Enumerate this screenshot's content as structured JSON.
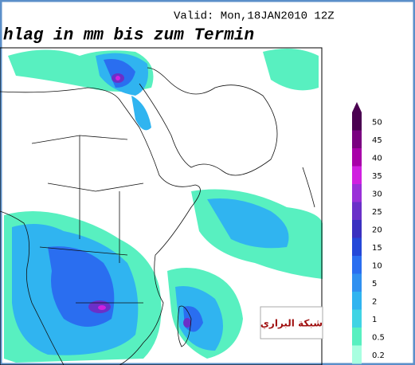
{
  "header": {
    "valid": "Valid: Mon,18JAN2010 12Z",
    "title": "hlag in mm bis zum Termin"
  },
  "legend": {
    "items": [
      {
        "label": "50",
        "color": "#4a0050"
      },
      {
        "label": "45",
        "color": "#7a0080"
      },
      {
        "label": "40",
        "color": "#a800a8"
      },
      {
        "label": "35",
        "color": "#d020e0"
      },
      {
        "label": "30",
        "color": "#9a30d8"
      },
      {
        "label": "25",
        "color": "#6a30c8"
      },
      {
        "label": "20",
        "color": "#3a30c0"
      },
      {
        "label": "15",
        "color": "#2448d8"
      },
      {
        "label": "10",
        "color": "#2a6ef0"
      },
      {
        "label": "5",
        "color": "#3090f0"
      },
      {
        "label": "2",
        "color": "#30b4f0"
      },
      {
        "label": "1",
        "color": "#40d4e4"
      },
      {
        "label": "0.5",
        "color": "#58f0c0"
      },
      {
        "label": "0.2",
        "color": "#a8ffe0"
      }
    ]
  },
  "watermark": "شبكة البراري"
}
